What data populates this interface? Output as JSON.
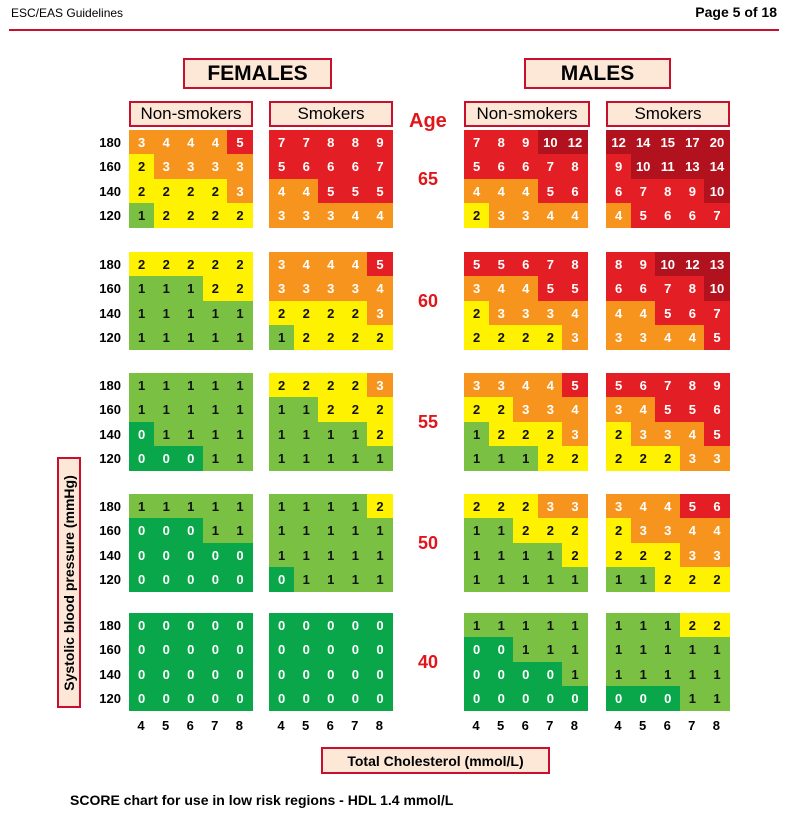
{
  "header": {
    "source": "ESC/EAS Guidelines",
    "page": "Page 5 of 18"
  },
  "sex_labels": {
    "females": "FEMALES",
    "males": "MALES"
  },
  "smoking_labels": {
    "non_smokers": "Non-smokers",
    "smokers": "Smokers"
  },
  "age_heading": "Age",
  "xlabel": "Total Cholesterol (mmol/L)",
  "ylabel": "Systolic blood pressure (mmHg)",
  "footnote": "SCORE chart for use in low risk regions - HDL 1.4 mmol/L",
  "colors": {
    "dark_green": "#0aa64a",
    "light_green": "#7ac143",
    "yellow": "#fff200",
    "orange": "#f7941d",
    "red": "#e31e24",
    "dark_red": "#b2121e",
    "rule": "#c8102e"
  },
  "chart_data": {
    "type": "heatmap",
    "title": "",
    "xlabel": "Total Cholesterol (mmol/L)",
    "ylabel": "Systolic blood pressure (mmHg)",
    "x": [
      4,
      5,
      6,
      7,
      8
    ],
    "y": [
      180,
      160,
      140,
      120
    ],
    "ages": [
      65,
      60,
      55,
      50,
      40
    ],
    "panels": [
      {
        "sex": "Females",
        "smoking": "Non-smokers",
        "grids": [
          [
            [
              3,
              4,
              4,
              4,
              5
            ],
            [
              2,
              3,
              3,
              3,
              3
            ],
            [
              2,
              2,
              2,
              2,
              3
            ],
            [
              1,
              2,
              2,
              2,
              2
            ]
          ],
          [
            [
              2,
              2,
              2,
              2,
              2
            ],
            [
              1,
              1,
              1,
              2,
              2
            ],
            [
              1,
              1,
              1,
              1,
              1
            ],
            [
              1,
              1,
              1,
              1,
              1
            ]
          ],
          [
            [
              1,
              1,
              1,
              1,
              1
            ],
            [
              1,
              1,
              1,
              1,
              1
            ],
            [
              0,
              1,
              1,
              1,
              1
            ],
            [
              0,
              0,
              0,
              1,
              1
            ]
          ],
          [
            [
              1,
              1,
              1,
              1,
              1
            ],
            [
              0,
              0,
              0,
              1,
              1
            ],
            [
              0,
              0,
              0,
              0,
              0
            ],
            [
              0,
              0,
              0,
              0,
              0
            ]
          ],
          [
            [
              0,
              0,
              0,
              0,
              0
            ],
            [
              0,
              0,
              0,
              0,
              0
            ],
            [
              0,
              0,
              0,
              0,
              0
            ],
            [
              0,
              0,
              0,
              0,
              0
            ]
          ]
        ]
      },
      {
        "sex": "Females",
        "smoking": "Smokers",
        "grids": [
          [
            [
              7,
              7,
              8,
              8,
              9
            ],
            [
              5,
              6,
              6,
              6,
              7
            ],
            [
              4,
              4,
              5,
              5,
              5
            ],
            [
              3,
              3,
              3,
              4,
              4
            ]
          ],
          [
            [
              3,
              4,
              4,
              4,
              5
            ],
            [
              3,
              3,
              3,
              3,
              4
            ],
            [
              2,
              2,
              2,
              2,
              3
            ],
            [
              1,
              2,
              2,
              2,
              2
            ]
          ],
          [
            [
              2,
              2,
              2,
              2,
              3
            ],
            [
              1,
              1,
              2,
              2,
              2
            ],
            [
              1,
              1,
              1,
              1,
              2
            ],
            [
              1,
              1,
              1,
              1,
              1
            ]
          ],
          [
            [
              1,
              1,
              1,
              1,
              2
            ],
            [
              1,
              1,
              1,
              1,
              1
            ],
            [
              1,
              1,
              1,
              1,
              1
            ],
            [
              0,
              1,
              1,
              1,
              1
            ]
          ],
          [
            [
              0,
              0,
              0,
              0,
              0
            ],
            [
              0,
              0,
              0,
              0,
              0
            ],
            [
              0,
              0,
              0,
              0,
              0
            ],
            [
              0,
              0,
              0,
              0,
              0
            ]
          ]
        ]
      },
      {
        "sex": "Males",
        "smoking": "Non-smokers",
        "grids": [
          [
            [
              7,
              8,
              9,
              10,
              12
            ],
            [
              5,
              6,
              6,
              7,
              8
            ],
            [
              4,
              4,
              4,
              5,
              6
            ],
            [
              2,
              3,
              3,
              4,
              4
            ]
          ],
          [
            [
              5,
              5,
              6,
              7,
              8
            ],
            [
              3,
              4,
              4,
              5,
              5
            ],
            [
              2,
              3,
              3,
              3,
              4
            ],
            [
              2,
              2,
              2,
              2,
              3
            ]
          ],
          [
            [
              3,
              3,
              4,
              4,
              5
            ],
            [
              2,
              2,
              3,
              3,
              4
            ],
            [
              1,
              2,
              2,
              2,
              3
            ],
            [
              1,
              1,
              1,
              2,
              2
            ]
          ],
          [
            [
              2,
              2,
              2,
              3,
              3
            ],
            [
              1,
              1,
              2,
              2,
              2
            ],
            [
              1,
              1,
              1,
              1,
              2
            ],
            [
              1,
              1,
              1,
              1,
              1
            ]
          ],
          [
            [
              1,
              1,
              1,
              1,
              1
            ],
            [
              0,
              0,
              1,
              1,
              1
            ],
            [
              0,
              0,
              0,
              0,
              1
            ],
            [
              0,
              0,
              0,
              0,
              0
            ]
          ]
        ]
      },
      {
        "sex": "Males",
        "smoking": "Smokers",
        "grids": [
          [
            [
              12,
              14,
              15,
              17,
              20
            ],
            [
              9,
              10,
              11,
              13,
              14
            ],
            [
              6,
              7,
              8,
              9,
              10
            ],
            [
              4,
              5,
              6,
              6,
              7
            ]
          ],
          [
            [
              8,
              9,
              10,
              12,
              13
            ],
            [
              6,
              6,
              7,
              8,
              10
            ],
            [
              4,
              4,
              5,
              6,
              7
            ],
            [
              3,
              3,
              4,
              4,
              5
            ]
          ],
          [
            [
              5,
              6,
              7,
              8,
              9
            ],
            [
              3,
              4,
              5,
              5,
              6
            ],
            [
              2,
              3,
              3,
              4,
              5
            ],
            [
              2,
              2,
              2,
              3,
              3
            ]
          ],
          [
            [
              3,
              4,
              4,
              5,
              6
            ],
            [
              2,
              3,
              3,
              4,
              4
            ],
            [
              2,
              2,
              2,
              3,
              3
            ],
            [
              1,
              1,
              2,
              2,
              2
            ]
          ],
          [
            [
              1,
              1,
              1,
              2,
              2
            ],
            [
              1,
              1,
              1,
              1,
              1
            ],
            [
              1,
              1,
              1,
              1,
              1
            ],
            [
              0,
              0,
              0,
              1,
              1
            ]
          ]
        ]
      }
    ]
  }
}
